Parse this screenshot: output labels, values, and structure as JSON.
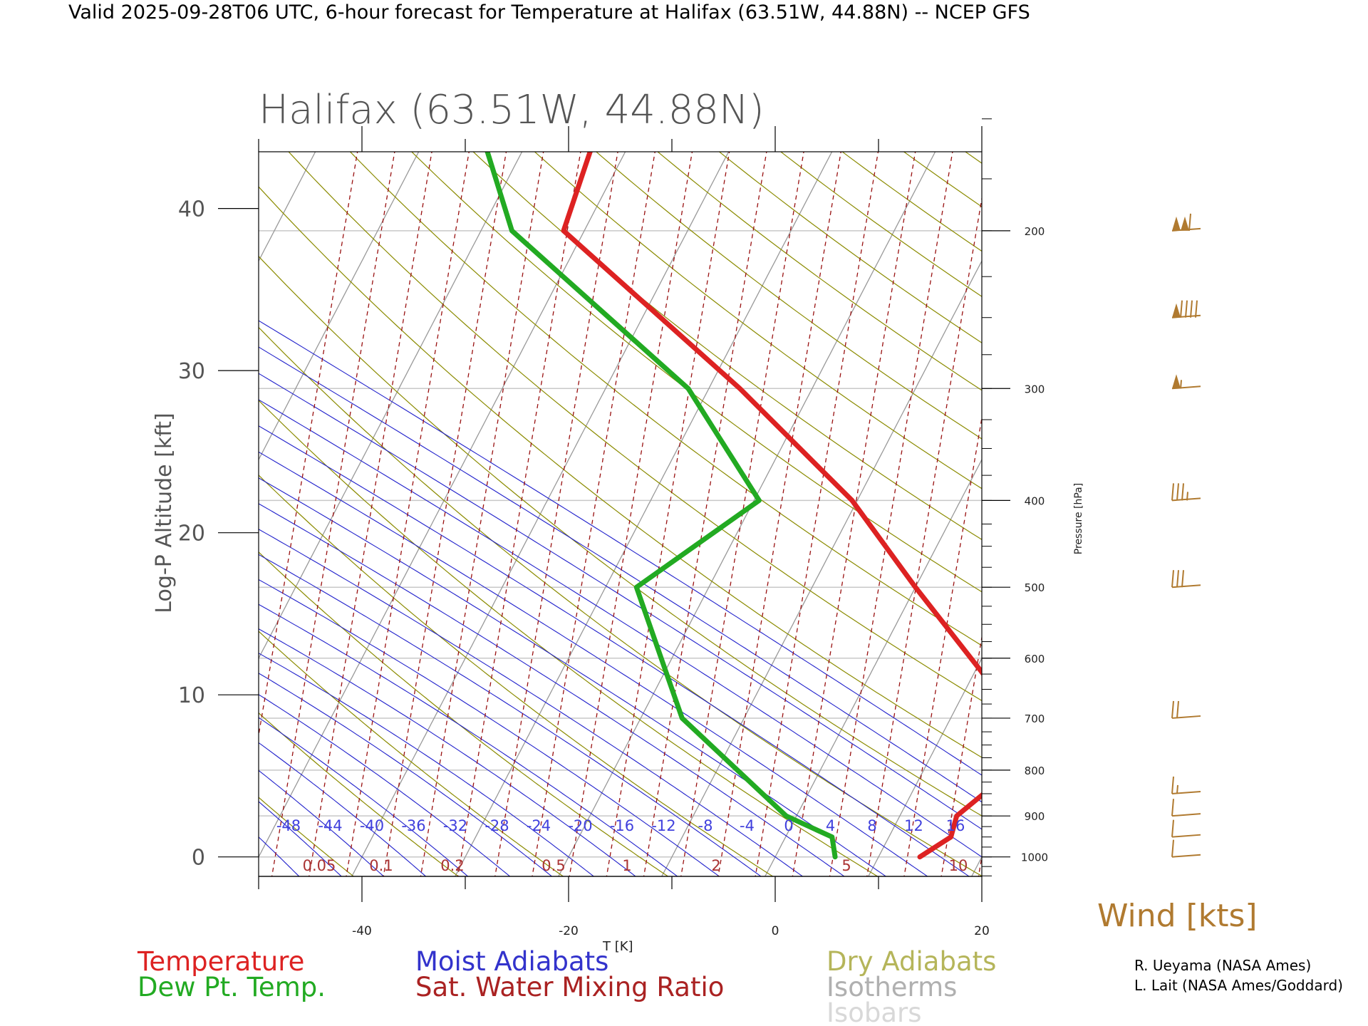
{
  "header": {
    "top_title": "Valid 2025-09-28T06 UTC, 6-hour forecast for Temperature at Halifax (63.51W, 44.88N) -- NCEP GFS",
    "plot_title": "Halifax (63.51W, 44.88N)"
  },
  "chart_data": {
    "type": "line",
    "subtype": "skew-t log-p diagram",
    "title": "Halifax (63.51W, 44.88N)",
    "xlabel": "T [K]",
    "ylabel_left": "Log-P Altitude [kft]",
    "ylabel_right": "Pressure [hPa]",
    "x_ticks": [
      "-40",
      "-20",
      "0",
      "20"
    ],
    "y_left_ticks": [
      "0",
      "10",
      "20",
      "30",
      "40"
    ],
    "pressure_labels": [
      "1000",
      "900",
      "800",
      "700",
      "600",
      "500",
      "400",
      "300",
      "200"
    ],
    "moist_adiabat_labels": [
      "-48",
      "-44",
      "-40",
      "-36",
      "-32",
      "-28",
      "-24",
      "-20",
      "-16",
      "-12",
      "-8",
      "-4",
      "0",
      "4",
      "8",
      "12",
      "16"
    ],
    "mixing_ratio_labels": [
      "0.05",
      "0.1",
      "0.2",
      "0.5",
      "1",
      "2",
      "5",
      "10"
    ],
    "xlim": [
      -50,
      20
    ],
    "ylim_kft": [
      -1.2,
      43.5
    ],
    "skew": 1.0,
    "grid": true,
    "series": [
      {
        "name": "Temperature",
        "color": "#cc1111",
        "points": [
          {
            "p": 1000,
            "t": 14.0
          },
          {
            "p": 950,
            "t": 16.0
          },
          {
            "p": 900,
            "t": 15.5
          },
          {
            "p": 850,
            "t": 17.0
          },
          {
            "p": 700,
            "t": 16.5
          },
          {
            "p": 500,
            "t": 0.0
          },
          {
            "p": 400,
            "t": -10.5
          },
          {
            "p": 300,
            "t": -27.0
          },
          {
            "p": 200,
            "t": -52.0
          },
          {
            "p": 150,
            "t": -54.0
          }
        ]
      },
      {
        "name": "Dew Pt. Temp.",
        "color": "#118811",
        "points": [
          {
            "p": 1000,
            "t": 5.8
          },
          {
            "p": 950,
            "t": 4.5
          },
          {
            "p": 900,
            "t": -1.0
          },
          {
            "p": 700,
            "t": -16.0
          },
          {
            "p": 500,
            "t": -27.0
          },
          {
            "p": 400,
            "t": -19.5
          },
          {
            "p": 300,
            "t": -32.0
          },
          {
            "p": 200,
            "t": -57.0
          },
          {
            "p": 150,
            "t": -66.0
          }
        ]
      }
    ],
    "wind_levels_hpa": [
      1000,
      950,
      900,
      850,
      700,
      500,
      400,
      300,
      250,
      200
    ],
    "wind_speeds_kts": [
      10,
      10,
      10,
      15,
      20,
      30,
      35,
      55,
      90,
      110
    ],
    "wind_color": "#8b5a1a"
  },
  "legend": {
    "temperature": "Temperature",
    "dewpoint": "Dew Pt. Temp.",
    "moist_adiabats": "Moist Adiabats",
    "mixing_ratio": "Sat. Water Mixing Ratio",
    "dry_adiabats": "Dry Adiabats",
    "isotherms": "Isotherms",
    "isobars": "Isobars",
    "wind_label": "Wind [kts]"
  },
  "credits": {
    "line1": "R. Ueyama (NASA Ames)",
    "line2": "L. Lait (NASA Ames/Goddard)"
  },
  "colors": {
    "temperature": "#dd2222",
    "dewpoint": "#22aa22",
    "moist": "#2222cc",
    "mixing": "#991111",
    "dry": "#8b8b00",
    "isotherm": "#999999",
    "isobar": "#c8c8c8",
    "wind": "#b07a30"
  }
}
